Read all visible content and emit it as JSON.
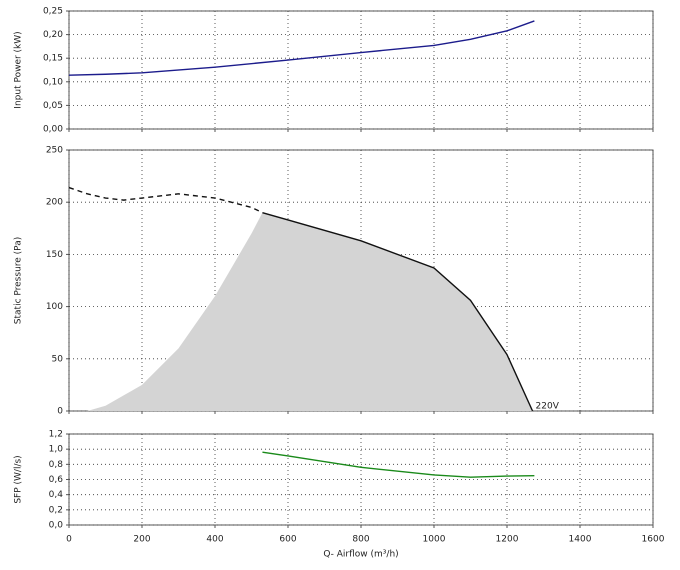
{
  "chart_data": [
    {
      "type": "line",
      "ylabel": "Input Power (kW)",
      "xlim": [
        0,
        1600
      ],
      "xticks": [
        0,
        200,
        400,
        600,
        800,
        1000,
        1200,
        1400,
        1600
      ],
      "show_xtick_labels": false,
      "ylim": [
        0,
        0.25
      ],
      "yticks": [
        {
          "value": 0,
          "label": "0,00"
        },
        {
          "value": 0.05,
          "label": "0,05"
        },
        {
          "value": 0.1,
          "label": "0,10"
        },
        {
          "value": 0.15,
          "label": "0,15"
        },
        {
          "value": 0.2,
          "label": "0,20"
        },
        {
          "value": 0.25,
          "label": "0,25"
        }
      ],
      "grid": true,
      "series": [
        {
          "color": "#1c1c8c",
          "x": [
            0,
            100,
            200,
            400,
            600,
            800,
            1000,
            1100,
            1200,
            1275
          ],
          "values": [
            0.114,
            0.116,
            0.119,
            0.131,
            0.146,
            0.162,
            0.177,
            0.19,
            0.208,
            0.229
          ]
        }
      ]
    },
    {
      "type": "line",
      "ylabel": "Static Pressure (Pa)",
      "xlim": [
        0,
        1600
      ],
      "xticks": [
        0,
        200,
        400,
        600,
        800,
        1000,
        1200,
        1400,
        1600
      ],
      "show_xtick_labels": false,
      "ylim": [
        0,
        250
      ],
      "yticks": [
        0,
        50,
        100,
        150,
        200,
        250
      ],
      "grid": true,
      "annotation": "220V",
      "series": [
        {
          "kind": "area",
          "color": "#d4d4d4",
          "x": [
            50,
            100,
            200,
            300,
            400,
            450,
            500,
            530,
            600,
            800,
            1000,
            1100,
            1200,
            1270
          ],
          "values": [
            0,
            5,
            25,
            60,
            110,
            140,
            170,
            190,
            183,
            163,
            137,
            106,
            54,
            0
          ]
        },
        {
          "color": "#111111",
          "dashed": true,
          "x": [
            0,
            50,
            100,
            150,
            200,
            300,
            400,
            500,
            530
          ],
          "values": [
            214,
            208,
            204,
            202,
            204,
            208,
            204,
            195,
            190
          ]
        },
        {
          "color": "#111111",
          "x": [
            530,
            600,
            800,
            1000,
            1100,
            1200,
            1270
          ],
          "values": [
            190,
            183,
            163,
            137,
            106,
            54,
            0
          ]
        }
      ]
    },
    {
      "type": "line",
      "ylabel": "SFP (W/l/s)",
      "xlabel": "Q- Airflow (m³/h)",
      "xlim": [
        0,
        1600
      ],
      "xticks": [
        0,
        200,
        400,
        600,
        800,
        1000,
        1200,
        1400,
        1600
      ],
      "show_xtick_labels": true,
      "ylim": [
        0,
        1.2
      ],
      "yticks": [
        {
          "value": 0,
          "label": "0,0"
        },
        {
          "value": 0.2,
          "label": "0,2"
        },
        {
          "value": 0.4,
          "label": "0,4"
        },
        {
          "value": 0.6,
          "label": "0,6"
        },
        {
          "value": 0.8,
          "label": "0,8"
        },
        {
          "value": 1.0,
          "label": "1,0"
        },
        {
          "value": 1.2,
          "label": "1,2"
        }
      ],
      "grid": true,
      "series": [
        {
          "color": "#1a8a1a",
          "x": [
            530,
            600,
            800,
            1000,
            1100,
            1200,
            1275
          ],
          "values": [
            0.96,
            0.91,
            0.76,
            0.66,
            0.63,
            0.645,
            0.65
          ]
        }
      ]
    }
  ]
}
